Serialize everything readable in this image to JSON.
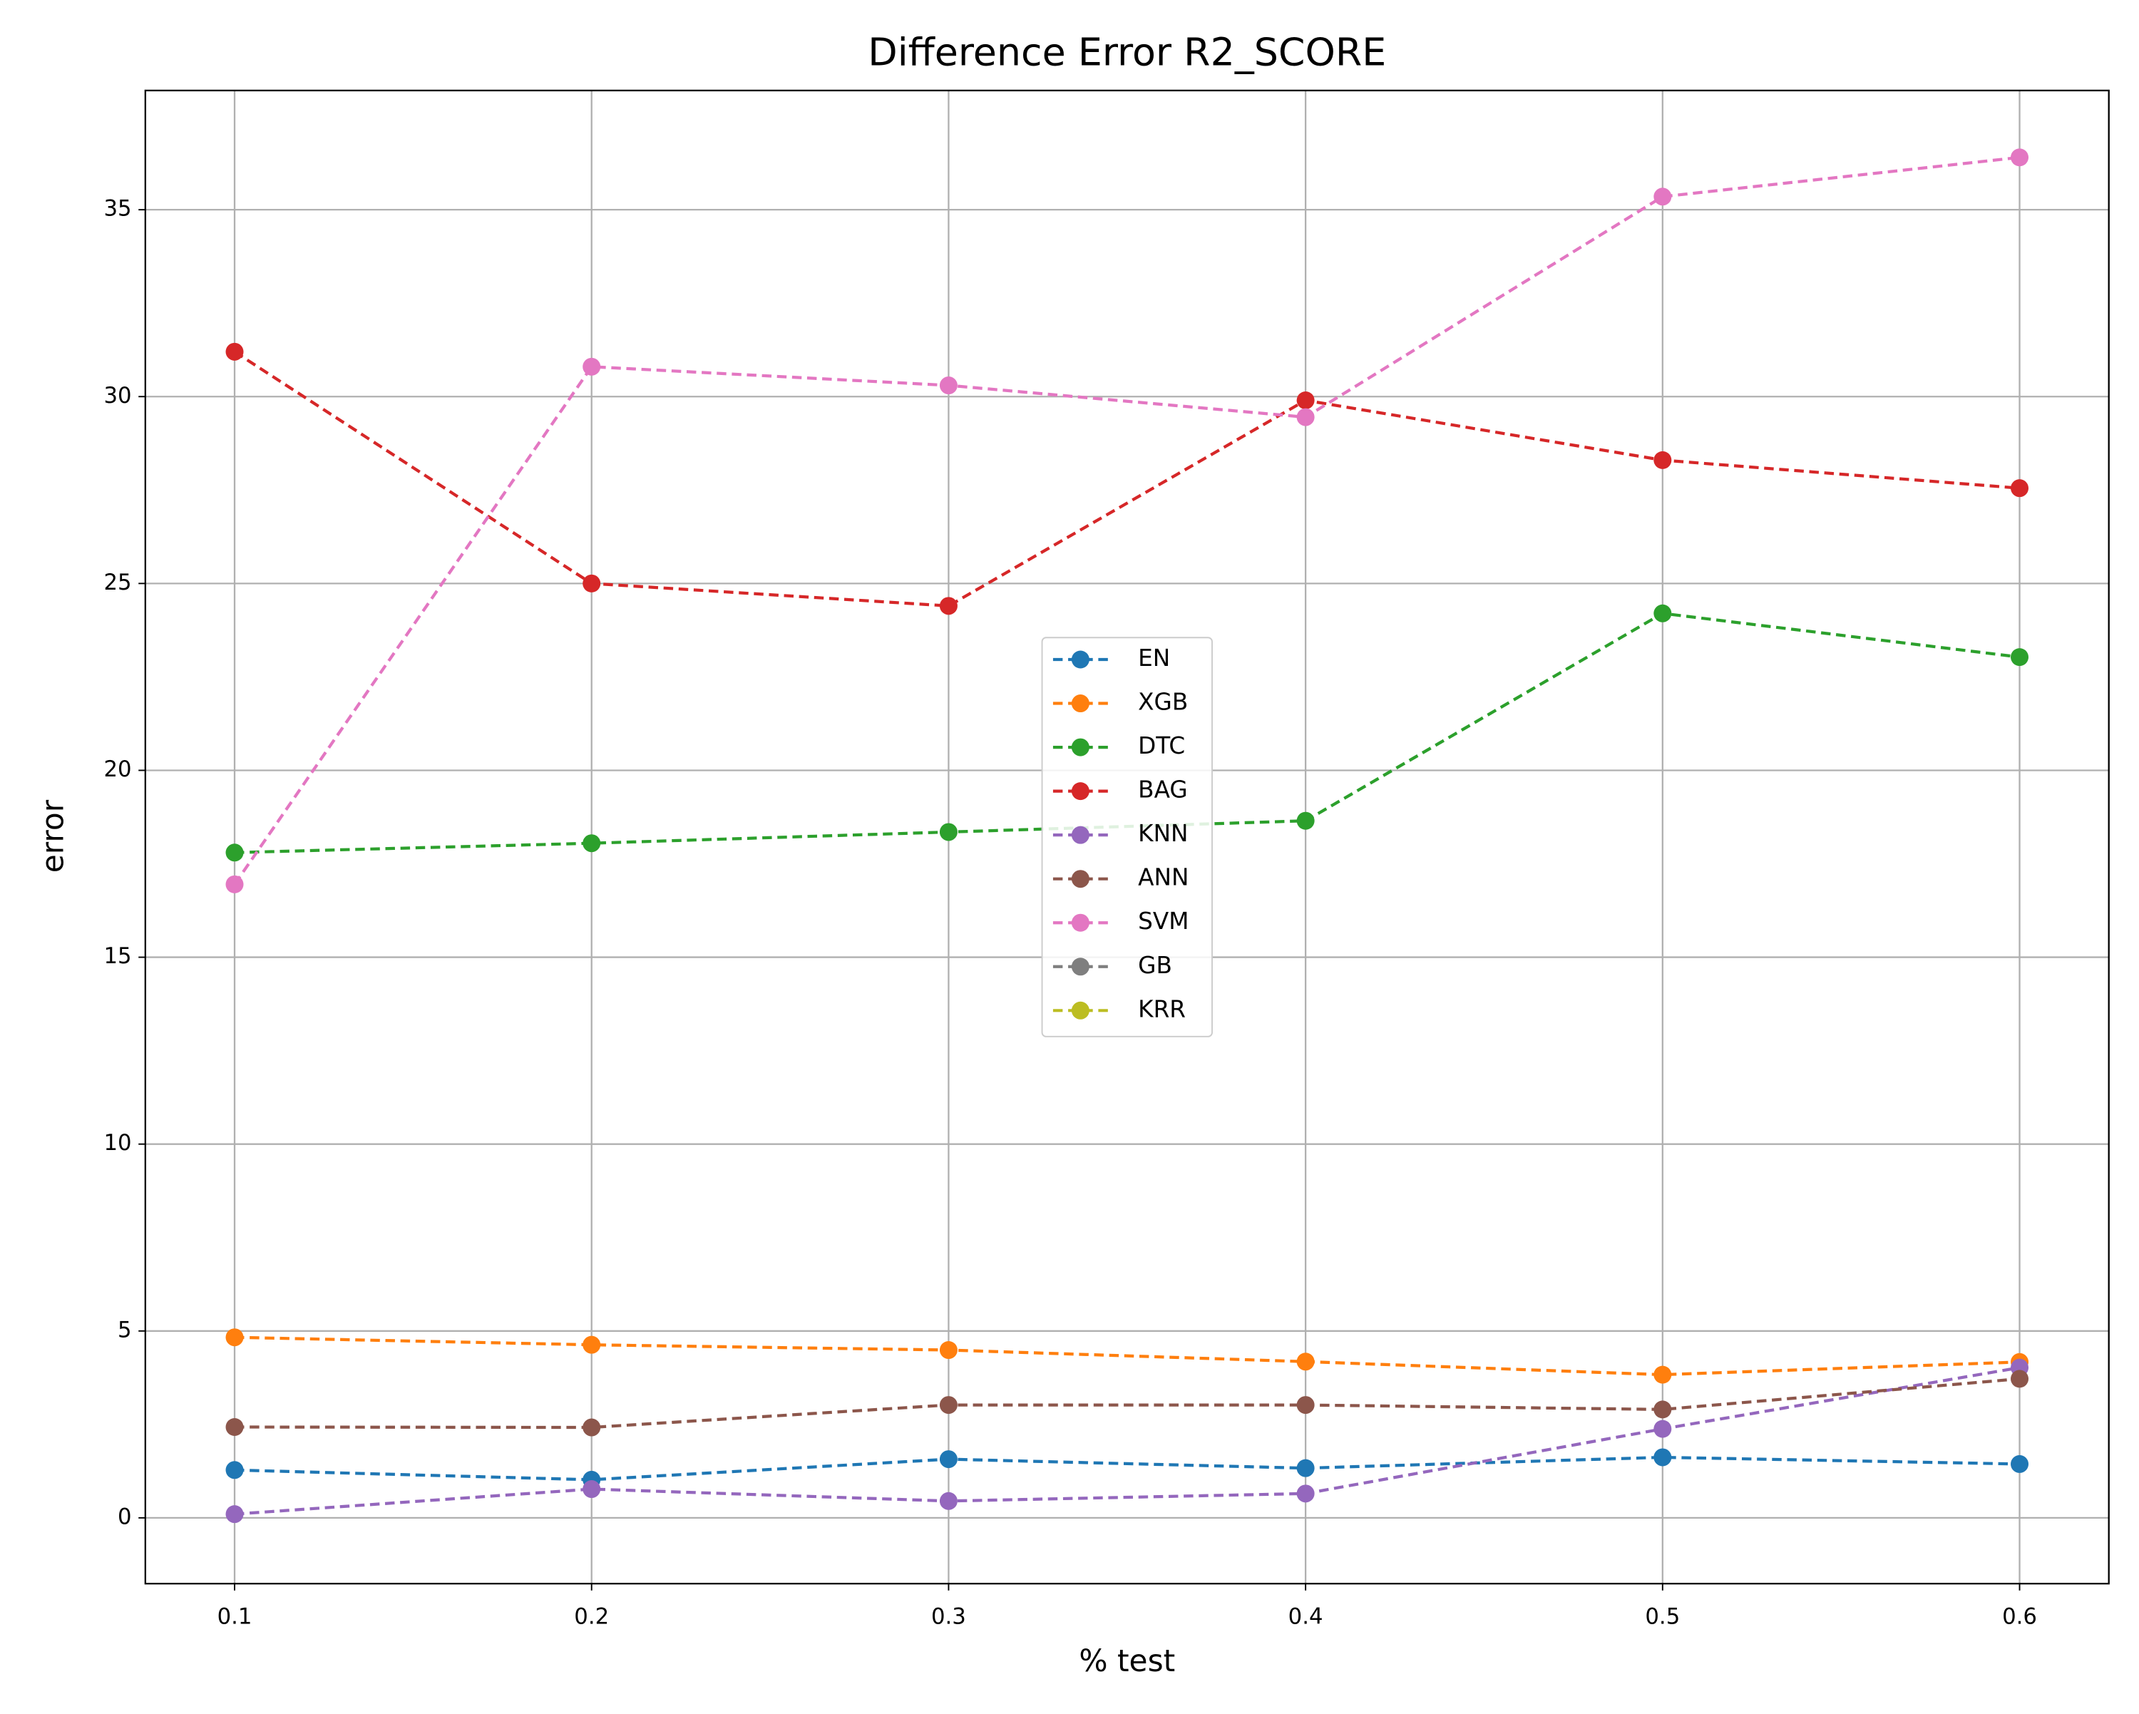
{
  "chart_data": {
    "type": "line",
    "title": "Difference Error R2_SCORE",
    "x_label": "% test",
    "y_label": "error",
    "x": [
      0.1,
      0.2,
      0.3,
      0.4,
      0.5,
      0.6
    ],
    "series": [
      {
        "name": "EN",
        "color": "#1f77b4",
        "values": [
          1.28,
          1.02,
          1.57,
          1.33,
          1.62,
          1.44
        ]
      },
      {
        "name": "XGB",
        "color": "#ff7f0e",
        "values": [
          4.83,
          4.63,
          4.49,
          4.18,
          3.83,
          4.17
        ]
      },
      {
        "name": "DTC",
        "color": "#2ca02c",
        "values": [
          17.8,
          18.05,
          18.35,
          18.65,
          24.2,
          23.03
        ]
      },
      {
        "name": "BAG",
        "color": "#d62728",
        "values": [
          31.2,
          25.0,
          24.4,
          29.9,
          28.3,
          27.55
        ]
      },
      {
        "name": "KNN",
        "color": "#9467bd",
        "values": [
          0.1,
          0.77,
          0.45,
          0.65,
          2.38,
          4.02
        ]
      },
      {
        "name": "ANN",
        "color": "#8c564b",
        "values": [
          2.43,
          2.42,
          3.02,
          3.02,
          2.9,
          3.72
        ]
      },
      {
        "name": "SVM",
        "color": "#e377c2",
        "values": [
          16.95,
          30.8,
          30.3,
          29.45,
          35.35,
          36.4
        ]
      },
      {
        "name": "GB",
        "color": "#7f7f7f",
        "values": [
          null,
          null,
          null,
          null,
          null,
          null
        ]
      },
      {
        "name": "KRR",
        "color": "#bcbd22",
        "values": [
          null,
          null,
          null,
          null,
          null,
          null
        ]
      }
    ],
    "xlim": [
      0.075,
      0.625
    ],
    "xticks": [
      0.1,
      0.2,
      0.3,
      0.4,
      0.5,
      0.6
    ],
    "ylim": [
      -1.76,
      38.19
    ],
    "yticks": [
      0,
      5,
      10,
      15,
      20,
      25,
      30,
      35
    ],
    "grid": true,
    "legend": "center"
  }
}
